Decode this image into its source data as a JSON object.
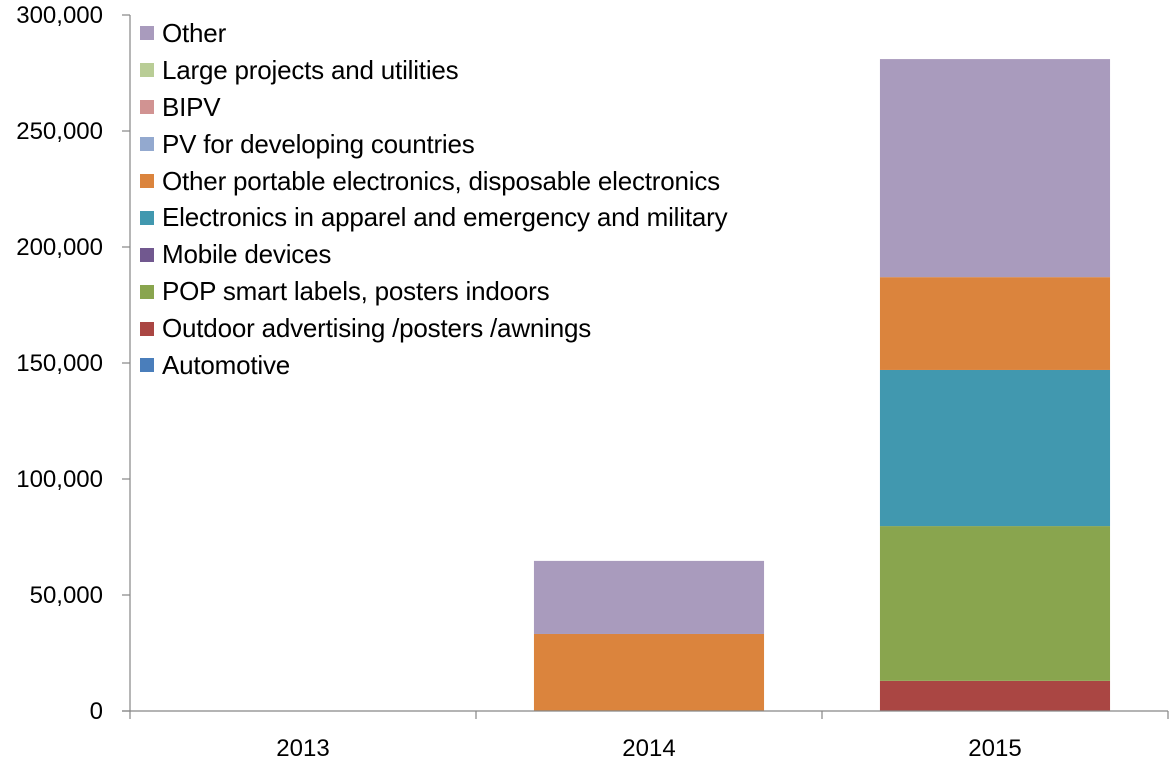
{
  "chart_data": {
    "type": "bar",
    "stacked": true,
    "title": "",
    "xlabel": "",
    "ylabel": "",
    "categories": [
      "2013",
      "2014",
      "2015"
    ],
    "ylim": [
      0,
      300000
    ],
    "yticks": [
      0,
      50000,
      100000,
      150000,
      200000,
      250000,
      300000
    ],
    "ytick_labels": [
      "0",
      "50,000",
      "100,000",
      "150,000",
      "200,000",
      "250,000",
      "300,000"
    ],
    "grid": false,
    "legend_position": "top-left",
    "series": [
      {
        "name": "Automotive",
        "color": "#4a7ebb",
        "values": [
          0,
          0,
          0
        ]
      },
      {
        "name": "Outdoor advertising /posters /awnings",
        "color": "#aa4643",
        "values": [
          0,
          0,
          13000
        ]
      },
      {
        "name": "POP smart labels, posters indoors",
        "color": "#89a54e",
        "values": [
          0,
          0,
          66700
        ]
      },
      {
        "name": "Mobile devices",
        "color": "#71588f",
        "values": [
          0,
          0,
          0
        ]
      },
      {
        "name": "Electronics in apparel and emergency and military",
        "color": "#4198af",
        "values": [
          0,
          0,
          67300
        ]
      },
      {
        "name": "Other portable electronics, disposable electronics",
        "color": "#db843d",
        "values": [
          0,
          33200,
          40000
        ]
      },
      {
        "name": "PV for developing countries",
        "color": "#93a9cf",
        "values": [
          0,
          0,
          0
        ]
      },
      {
        "name": "BIPV",
        "color": "#d19392",
        "values": [
          0,
          0,
          0
        ]
      },
      {
        "name": "Large projects and utilities",
        "color": "#b9cd96",
        "values": [
          0,
          0,
          0
        ]
      },
      {
        "name": "Other",
        "color": "#a99bbd",
        "values": [
          0,
          31500,
          94000
        ]
      }
    ]
  }
}
